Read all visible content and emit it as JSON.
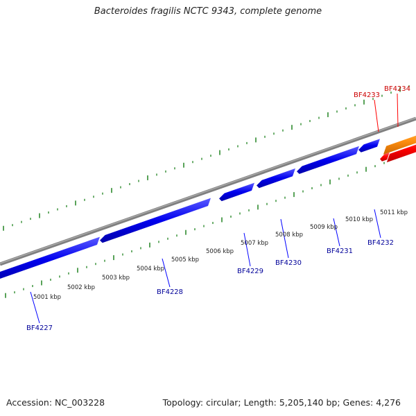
{
  "header": {
    "title": "Bacteroides fragilis NCTC 9343, complete genome"
  },
  "footer": {
    "accession": "Accession: NC_003228",
    "summary": "Topology: circular; Length: 5,205,140 bp; Genes: 4,276"
  },
  "colors": {
    "forward_gene": "#ff0000",
    "forward_gene_alt": "#ff8c00",
    "reverse_gene": "#0000ff",
    "backbone": "#808080",
    "ticks": "#2e8b2e",
    "forward_label": "#cc0000",
    "reverse_label": "#000099"
  },
  "scale_labels": [
    "5001 kbp",
    "5002 kbp",
    "5003 kbp",
    "5004 kbp",
    "5005 kbp",
    "5006 kbp",
    "5007 kbp",
    "5008 kbp",
    "5009 kbp",
    "5010 kbp",
    "5011 kbp"
  ],
  "reverse_strand_genes": [
    {
      "name": "BF4227"
    },
    {
      "name": "BF4228"
    },
    {
      "name": "BF4229"
    },
    {
      "name": "BF4230"
    },
    {
      "name": "BF4231"
    },
    {
      "name": "BF4232"
    }
  ],
  "forward_strand_genes": [
    {
      "name": "BF4233"
    },
    {
      "name": "BF4234"
    }
  ]
}
